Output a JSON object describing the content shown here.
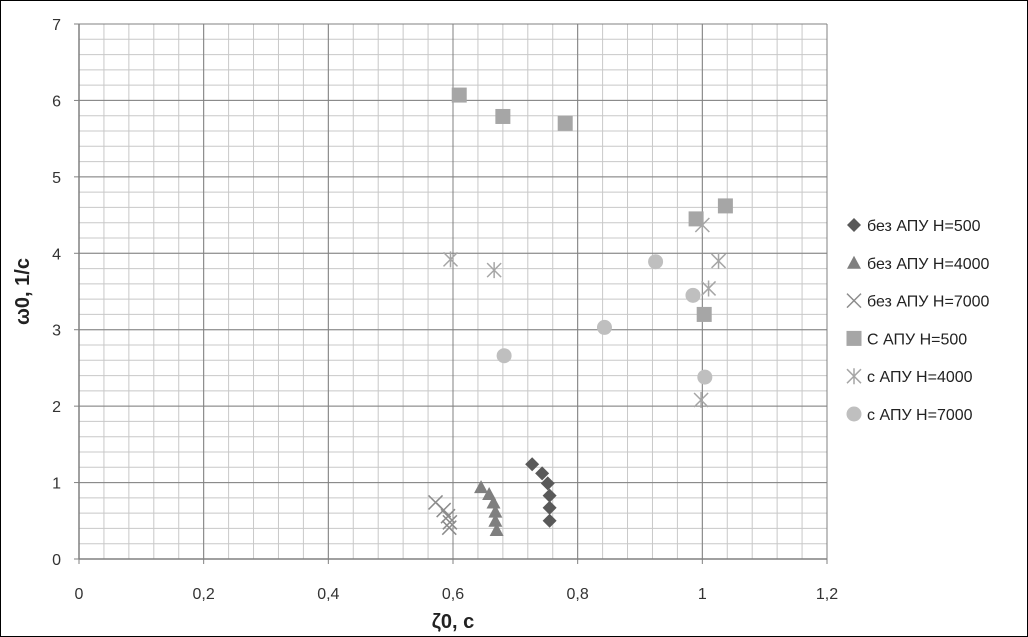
{
  "chart_data": {
    "type": "scatter",
    "xlabel": "ζ0, с",
    "ylabel": "ω0, 1/с",
    "xlim": [
      0,
      1.2
    ],
    "ylim": [
      0,
      7
    ],
    "x_ticks": [
      "0",
      "0,2",
      "0,4",
      "0,6",
      "0,8",
      "1",
      "1,2"
    ],
    "y_ticks": [
      "0",
      "1",
      "2",
      "3",
      "4",
      "5",
      "6",
      "7"
    ],
    "grid": true,
    "legend_position": "right",
    "series": [
      {
        "name": "без АПУ Н=500",
        "marker": "diamond",
        "color": "#595959",
        "points": [
          [
            0.727,
            1.24
          ],
          [
            0.743,
            1.12
          ],
          [
            0.752,
            0.99
          ],
          [
            0.755,
            0.83
          ],
          [
            0.755,
            0.67
          ],
          [
            0.755,
            0.5
          ]
        ]
      },
      {
        "name": "без АПУ Н=4000",
        "marker": "triangle",
        "color": "#7f7f7f",
        "points": [
          [
            0.645,
            0.94
          ],
          [
            0.658,
            0.85
          ],
          [
            0.665,
            0.74
          ],
          [
            0.668,
            0.62
          ],
          [
            0.668,
            0.5
          ],
          [
            0.67,
            0.38
          ]
        ]
      },
      {
        "name": "без АПУ Н=7000",
        "marker": "x",
        "color": "#8c8c8c",
        "points": [
          [
            0.572,
            0.74
          ],
          [
            0.585,
            0.64
          ],
          [
            0.592,
            0.56
          ],
          [
            0.595,
            0.48
          ],
          [
            0.594,
            0.41
          ]
        ]
      },
      {
        "name": "С АПУ Н=500",
        "marker": "square",
        "color": "#a6a6a6",
        "points": [
          [
            0.61,
            6.07
          ],
          [
            0.68,
            5.79
          ],
          [
            0.78,
            5.7
          ],
          [
            0.99,
            4.45
          ],
          [
            1.037,
            4.62
          ],
          [
            1.003,
            3.2
          ]
        ]
      },
      {
        "name": "с АПУ Н=4000",
        "marker": "asterisk",
        "color": "#a6a6a6",
        "points": [
          [
            0.596,
            3.92
          ],
          [
            0.666,
            3.78
          ],
          [
            1.0,
            4.37
          ],
          [
            1.026,
            3.9
          ],
          [
            1.01,
            3.54
          ],
          [
            0.998,
            2.08
          ]
        ]
      },
      {
        "name": "с АПУ Н=7000",
        "marker": "circle",
        "color": "#bfbfbf",
        "points": [
          [
            0.682,
            2.66
          ],
          [
            0.843,
            3.03
          ],
          [
            0.925,
            3.89
          ],
          [
            0.985,
            3.45
          ],
          [
            1.004,
            2.38
          ]
        ]
      }
    ]
  }
}
